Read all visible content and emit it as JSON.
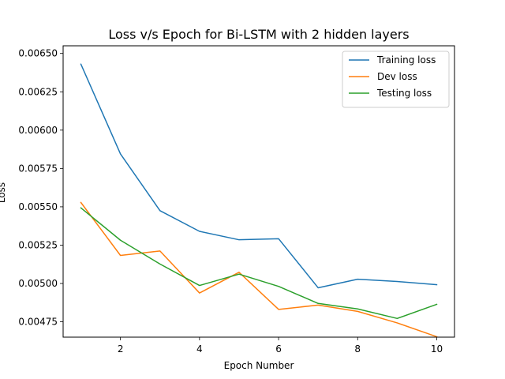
{
  "chart_data": {
    "type": "line",
    "title": "Loss v/s Epoch for Bi-LSTM with 2 hidden layers",
    "xlabel": "Epoch Number",
    "ylabel": "Loss",
    "x": [
      1,
      2,
      3,
      4,
      5,
      6,
      7,
      8,
      9,
      10
    ],
    "xlim": [
      0.55,
      10.45
    ],
    "ylim": [
      0.00465,
      0.00655
    ],
    "xticks": [
      2,
      4,
      6,
      8,
      10
    ],
    "xtick_labels": [
      "2",
      "4",
      "6",
      "8",
      "10"
    ],
    "yticks": [
      0.00475,
      0.005,
      0.00525,
      0.0055,
      0.00575,
      0.006,
      0.00625,
      0.0065
    ],
    "ytick_labels": [
      "0.00475",
      "0.00500",
      "0.00525",
      "0.00550",
      "0.00575",
      "0.00600",
      "0.00625",
      "0.00650"
    ],
    "grid": false,
    "legend_position": "top-right",
    "series": [
      {
        "name": "Training loss",
        "color": "#1f77b4",
        "values": [
          0.00643,
          0.005845,
          0.005475,
          0.00534,
          0.005285,
          0.005292,
          0.004972,
          0.005028,
          0.005013,
          0.004992
        ]
      },
      {
        "name": "Dev loss",
        "color": "#ff7f0e",
        "values": [
          0.005528,
          0.005183,
          0.005212,
          0.004938,
          0.005073,
          0.004831,
          0.004859,
          0.004818,
          0.004743,
          0.004653
        ]
      },
      {
        "name": "Testing loss",
        "color": "#2ca02c",
        "values": [
          0.005493,
          0.005282,
          0.005127,
          0.004987,
          0.005061,
          0.004981,
          0.00487,
          0.004834,
          0.004772,
          0.004864
        ]
      }
    ]
  }
}
